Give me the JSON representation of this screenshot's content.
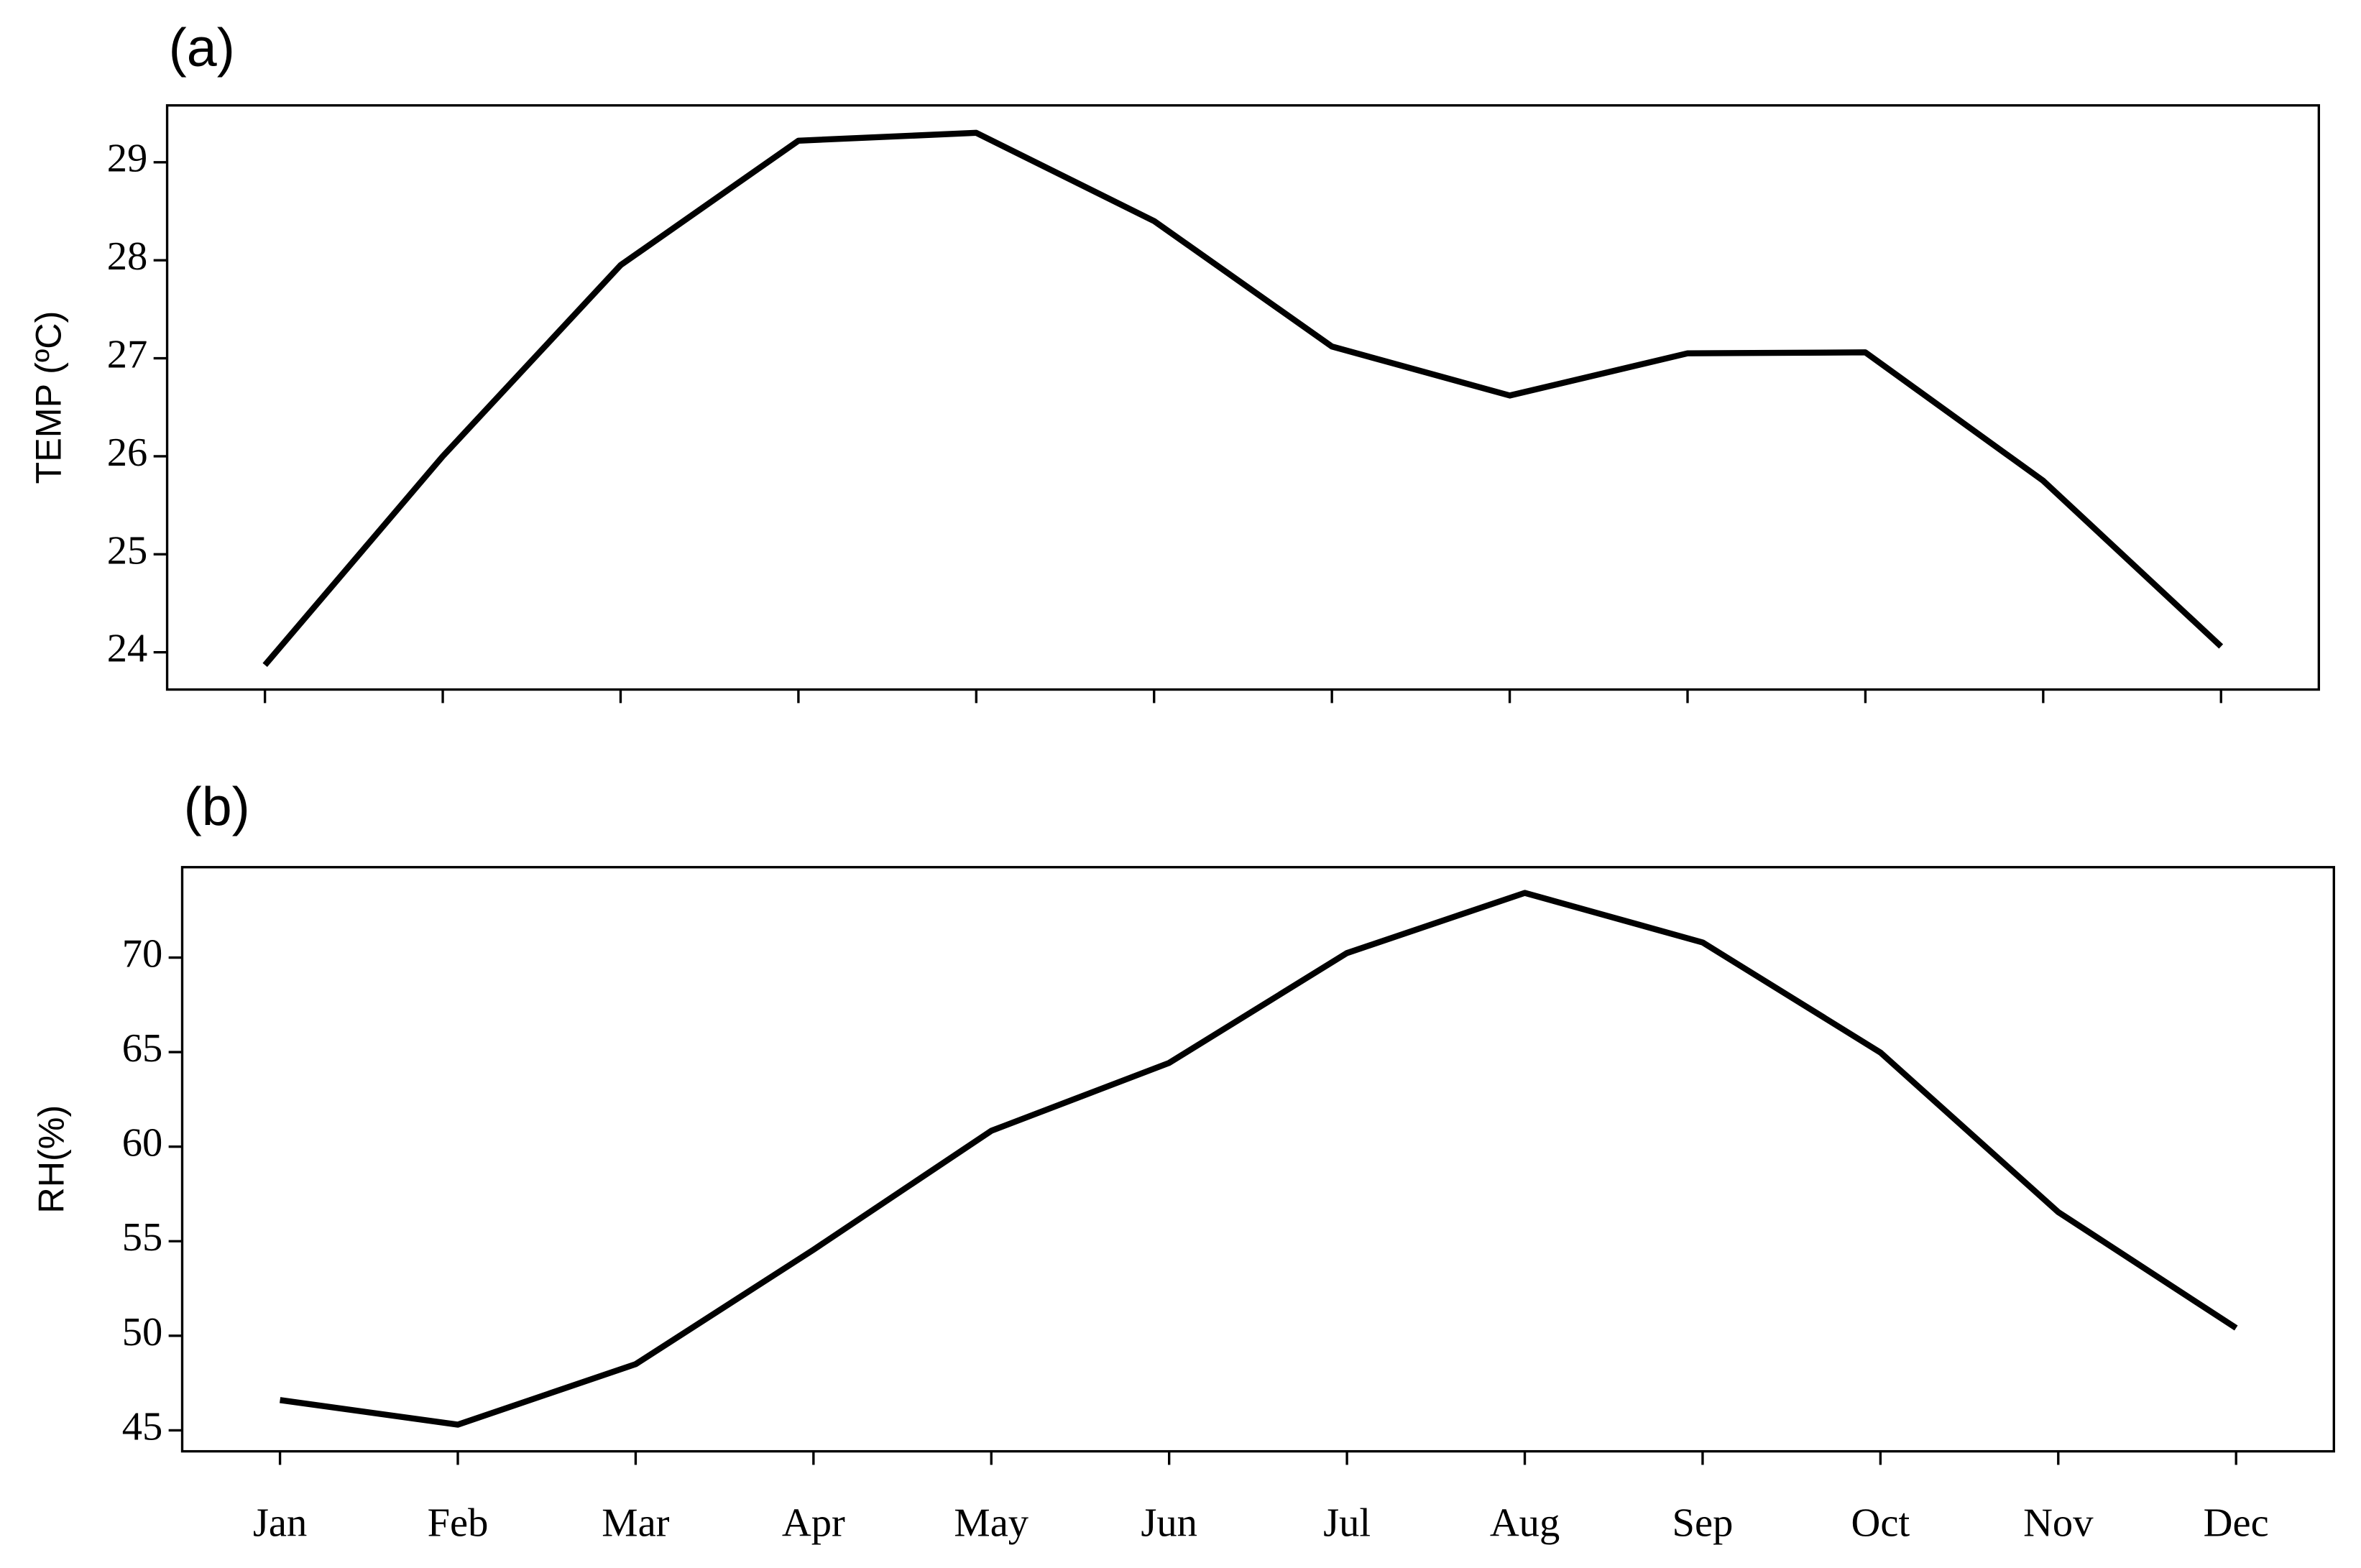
{
  "chart_data": [
    {
      "type": "line",
      "title": "(a)",
      "y_label": "TEMP (ºC)",
      "categories": [
        null,
        null,
        null,
        null,
        null,
        null,
        null,
        null,
        null,
        null,
        null,
        null
      ],
      "series": [
        {
          "name": "TEMP",
          "color": "#000000",
          "values": [
            23.87,
            26.0,
            27.95,
            29.22,
            29.3,
            28.4,
            27.12,
            26.62,
            27.05,
            27.06,
            25.75,
            24.06
          ]
        }
      ],
      "ylim": [
        23.62,
        29.58
      ],
      "yticks": [
        24,
        25,
        26,
        27,
        28,
        29
      ],
      "grid": false
    },
    {
      "type": "line",
      "title": "(b)",
      "y_label": "RH(%)",
      "categories": [
        "Jan",
        "Feb",
        "Mar",
        "Apr",
        "May",
        "Jun",
        "Jul",
        "Aug",
        "Sep",
        "Oct",
        "Nov",
        "Dec"
      ],
      "series": [
        {
          "name": "RH",
          "color": "#000000",
          "values": [
            46.6,
            45.3,
            48.5,
            54.55,
            60.84,
            64.43,
            70.24,
            73.42,
            70.8,
            64.98,
            56.54,
            50.41
          ]
        }
      ],
      "ylim": [
        43.89,
        74.78
      ],
      "yticks": [
        45,
        50,
        55,
        60,
        65,
        70
      ],
      "grid": false
    }
  ]
}
